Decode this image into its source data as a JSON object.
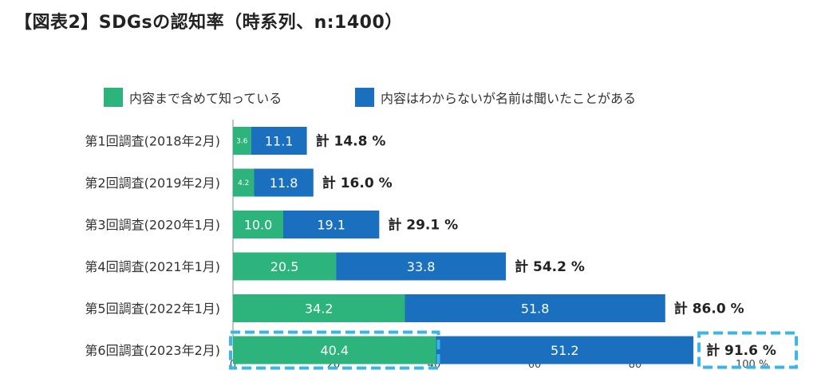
{
  "title": "【図表2】SDGsの認知率（時系列、n:1400）",
  "chart_data": {
    "type": "bar",
    "orientation": "horizontal",
    "stacked": true,
    "categories": [
      "第1回調査(2018年2月)",
      "第2回調査(2019年2月)",
      "第3回調査(2020年1月)",
      "第4回調査(2021年1月)",
      "第5回調査(2022年1月)",
      "第6回調査(2023年2月)"
    ],
    "series": [
      {
        "name": "内容まで含めて知っている",
        "color": "#2db37c",
        "values": [
          3.6,
          4.2,
          10.0,
          20.5,
          34.2,
          40.4
        ],
        "labels": [
          "3.6",
          "4.2",
          "10.0",
          "20.5",
          "34.2",
          "40.4"
        ]
      },
      {
        "name": "内容はわからないが名前は聞いたことがある",
        "color": "#1a6fbf",
        "values": [
          11.1,
          11.8,
          19.1,
          33.8,
          51.8,
          51.2
        ],
        "labels": [
          "11.1",
          "11.8",
          "19.1",
          "33.8",
          "51.8",
          "51.2"
        ]
      }
    ],
    "totals": [
      "計 14.8 %",
      "計 16.0 %",
      "計 29.1 %",
      "計 54.2 %",
      "計 86.0 %",
      "計 91.6 %"
    ],
    "x_ticks": [
      "0",
      "20",
      "40",
      "60",
      "80",
      "100 %"
    ],
    "xlim": [
      0,
      100
    ],
    "legend_position": "top",
    "highlight_color": "#3ab6e6"
  }
}
